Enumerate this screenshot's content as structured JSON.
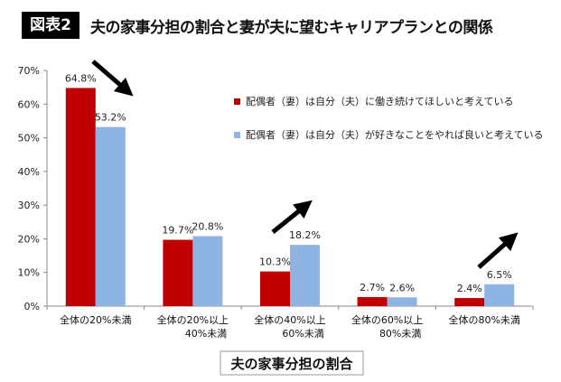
{
  "title_badge": "図表2",
  "title": "夫の家事分担の割合と妻が夫に望むキャリアプランとの関係",
  "chart_data": {
    "type": "bar",
    "title": "夫の家事分担の割合と妻が夫に望むキャリアプランとの関係",
    "xlabel": "夫の家事分担の割合",
    "ylabel": "",
    "ylim": [
      0,
      70
    ],
    "yticks": [
      "0%",
      "10%",
      "20%",
      "30%",
      "40%",
      "50%",
      "60%",
      "70%"
    ],
    "categories": [
      [
        "全体の20%未満"
      ],
      [
        "全体の20%以上",
        "40%未満"
      ],
      [
        "全体の40%以上",
        "60%未満"
      ],
      [
        "全体の60%以上",
        "80%未満"
      ],
      [
        "全体の80%未満"
      ]
    ],
    "series": [
      {
        "name": "配偶者（妻）は自分（夫）に働き続けてほしいと考えている",
        "color": "#c00000",
        "values": [
          64.8,
          19.7,
          10.3,
          2.7,
          2.4
        ],
        "labels": [
          "64.8%",
          "19.7%",
          "10.3%",
          "2.7%",
          "2.4%"
        ]
      },
      {
        "name": "配偶者（妻）は自分（夫）が好きなことをやれば良いと考えている",
        "color": "#8db4e2",
        "values": [
          53.2,
          20.8,
          18.2,
          2.6,
          6.5
        ],
        "labels": [
          "53.2%",
          "20.8%",
          "18.2%",
          "2.6%",
          "6.5%"
        ]
      }
    ],
    "grid": false,
    "legend": "top-right",
    "annotations": [
      "arrow-down-right",
      "arrow-up-right",
      "arrow-up-right"
    ]
  }
}
